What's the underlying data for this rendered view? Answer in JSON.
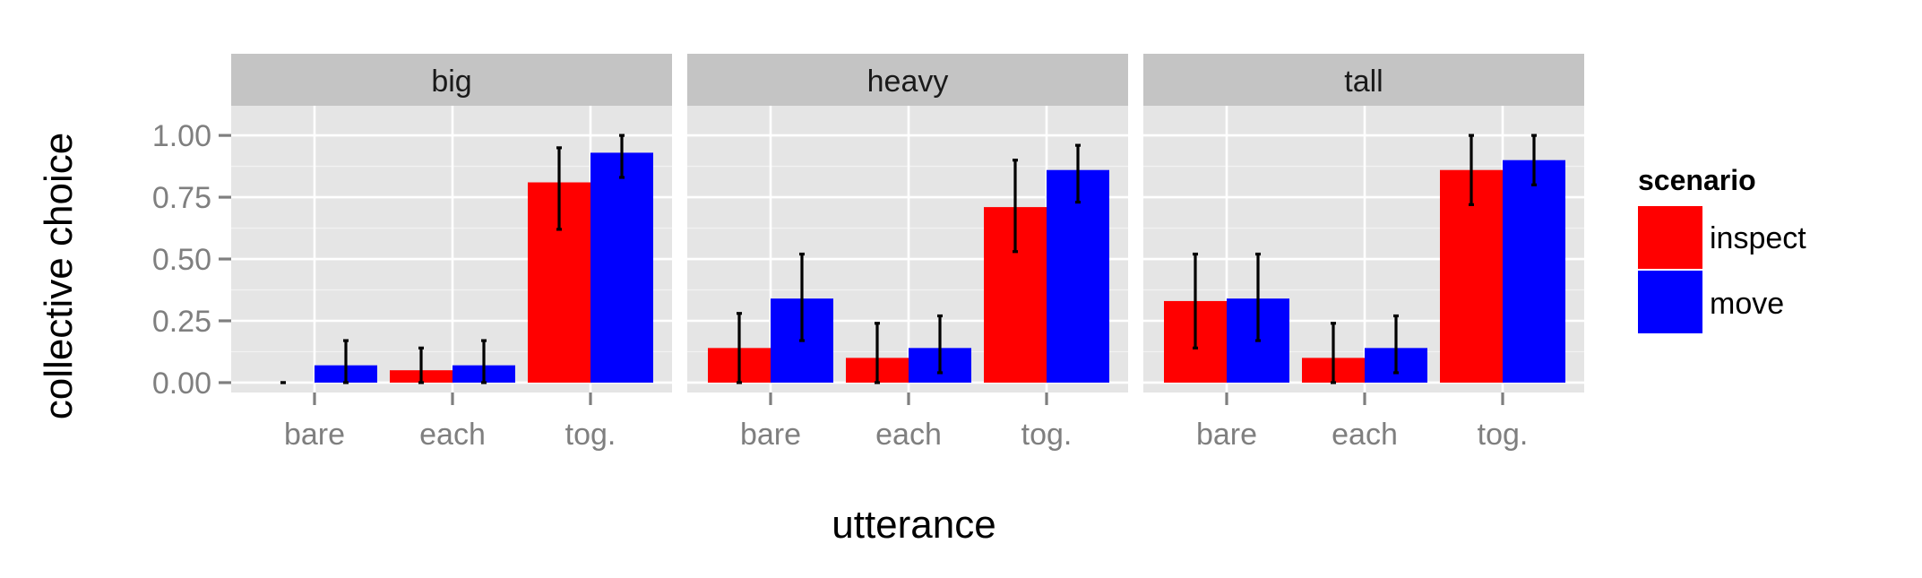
{
  "chart_data": {
    "type": "bar",
    "xlabel": "utterance",
    "ylabel": "collective choice",
    "ylim": [
      -0.04,
      1.12
    ],
    "yticks": [
      0.0,
      0.25,
      0.5,
      0.75,
      1.0
    ],
    "ytick_labels": [
      "0.00",
      "0.25",
      "0.50",
      "0.75",
      "1.00"
    ],
    "categories": [
      "bare",
      "each",
      "tog."
    ],
    "legend": {
      "title": "scenario",
      "position": "right",
      "entries": [
        {
          "name": "inspect",
          "color": "#ff0000"
        },
        {
          "name": "move",
          "color": "#0000ff"
        }
      ]
    },
    "grid": true,
    "facets": [
      {
        "label": "big",
        "series": [
          {
            "name": "inspect",
            "color": "#ff0000",
            "values": [
              0.0,
              0.05,
              0.81
            ],
            "err_low": [
              0.0,
              0.0,
              0.62
            ],
            "err_high": [
              0.0,
              0.14,
              0.95
            ]
          },
          {
            "name": "move",
            "color": "#0000ff",
            "values": [
              0.07,
              0.07,
              0.93
            ],
            "err_low": [
              0.0,
              0.0,
              0.83
            ],
            "err_high": [
              0.17,
              0.17,
              1.0
            ]
          }
        ]
      },
      {
        "label": "heavy",
        "series": [
          {
            "name": "inspect",
            "color": "#ff0000",
            "values": [
              0.14,
              0.1,
              0.71
            ],
            "err_low": [
              0.0,
              0.0,
              0.53
            ],
            "err_high": [
              0.28,
              0.24,
              0.9
            ]
          },
          {
            "name": "move",
            "color": "#0000ff",
            "values": [
              0.34,
              0.14,
              0.86
            ],
            "err_low": [
              0.17,
              0.04,
              0.73
            ],
            "err_high": [
              0.52,
              0.27,
              0.96
            ]
          }
        ]
      },
      {
        "label": "tall",
        "series": [
          {
            "name": "inspect",
            "color": "#ff0000",
            "values": [
              0.33,
              0.1,
              0.86
            ],
            "err_low": [
              0.14,
              0.0,
              0.72
            ],
            "err_high": [
              0.52,
              0.24,
              1.0
            ]
          },
          {
            "name": "move",
            "color": "#0000ff",
            "values": [
              0.34,
              0.14,
              0.9
            ],
            "err_low": [
              0.17,
              0.04,
              0.8
            ],
            "err_high": [
              0.52,
              0.27,
              1.0
            ]
          }
        ]
      }
    ]
  }
}
